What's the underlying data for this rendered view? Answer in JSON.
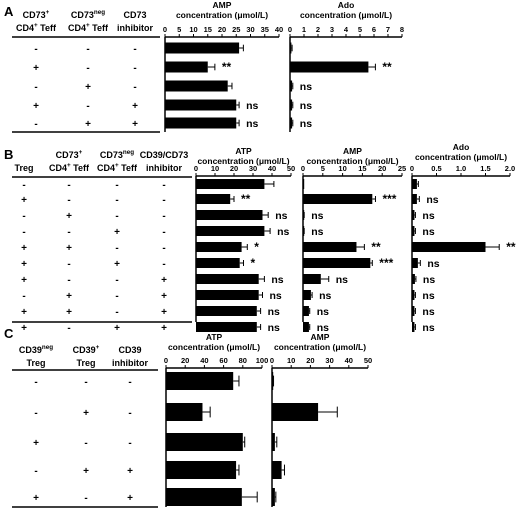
{
  "panels": [
    {
      "label": "A",
      "table": {
        "headers": [
          [
            "CD73+",
            "CD4+ Teff"
          ],
          [
            "CD73neg",
            "CD4+ Teff"
          ],
          [
            "CD73",
            "inhibitor"
          ]
        ],
        "rows": [
          [
            "-",
            "-",
            "-"
          ],
          [
            "+",
            "-",
            "-"
          ],
          [
            "-",
            "+",
            "-"
          ],
          [
            "+",
            "-",
            "+"
          ],
          [
            "-",
            "+",
            "+"
          ]
        ]
      },
      "charts": [
        {
          "title": [
            "AMP",
            "concentration (μmol/L)"
          ],
          "ticks": [
            "0",
            "5",
            "10",
            "15",
            "20",
            "25",
            "30",
            "35",
            "40"
          ]
        },
        {
          "title": [
            "Ado",
            "concentration (μmol/L)"
          ],
          "ticks": [
            "0",
            "1",
            "2",
            "3",
            "4",
            "5",
            "6",
            "7",
            "8"
          ]
        }
      ]
    },
    {
      "label": "B",
      "table": {
        "headers": [
          [
            "Treg"
          ],
          [
            "CD73+",
            "CD4+ Teff"
          ],
          [
            "CD73neg",
            "CD4+ Teff"
          ],
          [
            "CD39/CD73",
            "inhibitor"
          ]
        ],
        "rows": [
          [
            "-",
            "-",
            "-",
            "-"
          ],
          [
            "+",
            "-",
            "-",
            "-"
          ],
          [
            "-",
            "+",
            "-",
            "-"
          ],
          [
            "-",
            "-",
            "+",
            "-"
          ],
          [
            "+",
            "+",
            "-",
            "-"
          ],
          [
            "+",
            "-",
            "+",
            "-"
          ],
          [
            "+",
            "-",
            "-",
            "+"
          ],
          [
            "-",
            "+",
            "-",
            "+"
          ],
          [
            "+",
            "+",
            "-",
            "+"
          ],
          [
            "+",
            "-",
            "+",
            "+"
          ]
        ]
      },
      "charts": [
        {
          "title": [
            "ATP",
            "concentration (μmol/L)"
          ],
          "ticks": [
            "0",
            "10",
            "20",
            "30",
            "40",
            "50"
          ]
        },
        {
          "title": [
            "AMP",
            "concentration (μmol/L)"
          ],
          "ticks": [
            "0",
            "5",
            "10",
            "15",
            "20",
            "25"
          ]
        },
        {
          "title": [
            "Ado",
            "concentration (μmol/L)"
          ],
          "ticks": [
            "0",
            "0.5",
            "1.0",
            "1.5",
            "2.0"
          ]
        }
      ]
    },
    {
      "label": "C",
      "table": {
        "headers": [
          [
            "CD39neg",
            "Treg"
          ],
          [
            "CD39+",
            "Treg"
          ],
          [
            "CD39",
            "inhibitor"
          ]
        ],
        "rows": [
          [
            "-",
            "-",
            "-"
          ],
          [
            "-",
            "+",
            "-"
          ],
          [
            "+",
            "-",
            "-"
          ],
          [
            "-",
            "+",
            "+"
          ],
          [
            "+",
            "-",
            "+"
          ]
        ]
      },
      "charts": [
        {
          "title": [
            "ATP",
            "concentration (μmol/L)"
          ],
          "ticks": [
            "0",
            "20",
            "40",
            "60",
            "80",
            "100"
          ]
        },
        {
          "title": [
            "AMP",
            "concentration (μmol/L)"
          ],
          "ticks": [
            "0",
            "10",
            "20",
            "30",
            "40",
            "50"
          ]
        }
      ]
    }
  ],
  "chart_data": [
    {
      "type": "bar",
      "orientation": "horizontal",
      "panel": "A",
      "title": "AMP concentration (μmol/L)",
      "xlim": [
        0,
        40
      ],
      "values": [
        26,
        15,
        22,
        25,
        25
      ],
      "errors": [
        1.5,
        2.5,
        1.5,
        1,
        1
      ],
      "annotations": [
        "",
        "**",
        "",
        "ns",
        "ns"
      ]
    },
    {
      "type": "bar",
      "orientation": "horizontal",
      "panel": "A",
      "title": "Ado concentration (μmol/L)",
      "xlim": [
        0,
        8
      ],
      "values": [
        0.1,
        5.6,
        0.15,
        0.15,
        0.15
      ],
      "errors": [
        0.05,
        0.5,
        0.05,
        0.05,
        0.05
      ],
      "annotations": [
        "",
        "**",
        "ns",
        "ns",
        "ns"
      ]
    },
    {
      "type": "bar",
      "orientation": "horizontal",
      "panel": "B",
      "title": "ATP concentration (μmol/L)",
      "xlim": [
        0,
        50
      ],
      "values": [
        36,
        18,
        35,
        36,
        24,
        23,
        33,
        33,
        32,
        32
      ],
      "errors": [
        5,
        2,
        3,
        3,
        3,
        2,
        3,
        2,
        2,
        2
      ],
      "annotations": [
        "",
        "**",
        "ns",
        "ns",
        "*",
        "*",
        "ns",
        "ns",
        "ns",
        "ns"
      ]
    },
    {
      "type": "bar",
      "orientation": "horizontal",
      "panel": "B",
      "title": "AMP concentration (μmol/L)",
      "xlim": [
        0,
        25
      ],
      "values": [
        0,
        17.5,
        0.2,
        0.2,
        13.5,
        17,
        4.5,
        2,
        1.5,
        1.5
      ],
      "errors": [
        0,
        0.8,
        0.1,
        0.1,
        2,
        0.5,
        2,
        0.3,
        0.2,
        0.2
      ],
      "annotations": [
        "",
        "***",
        "ns",
        "ns",
        "**",
        "***",
        "ns",
        "ns",
        "ns",
        "ns"
      ]
    },
    {
      "type": "bar",
      "orientation": "horizontal",
      "panel": "B",
      "title": "Ado concentration (μmol/L)",
      "xlim": [
        0,
        2
      ],
      "values": [
        0.1,
        0.1,
        0.05,
        0.05,
        1.5,
        0.12,
        0.06,
        0.05,
        0.05,
        0.05
      ],
      "errors": [
        0.03,
        0.05,
        0.02,
        0.02,
        0.28,
        0.05,
        0.02,
        0.02,
        0.02,
        0.02
      ],
      "annotations": [
        "",
        "ns",
        "ns",
        "ns",
        "**",
        "ns",
        "ns",
        "ns",
        "ns",
        "ns"
      ]
    },
    {
      "type": "bar",
      "orientation": "horizontal",
      "panel": "C",
      "title": "ATP concentration (μmol/L)",
      "xlim": [
        0,
        100
      ],
      "values": [
        70,
        38,
        80,
        73,
        79
      ],
      "errors": [
        6,
        8,
        2,
        3,
        16
      ],
      "annotations": [
        "",
        "",
        "",
        "",
        ""
      ]
    },
    {
      "type": "bar",
      "orientation": "horizontal",
      "panel": "C",
      "title": "AMP concentration (μmol/L)",
      "xlim": [
        0,
        50
      ],
      "values": [
        0.5,
        24,
        1.5,
        5,
        1.5
      ],
      "errors": [
        0.3,
        10,
        1,
        1.5,
        0.5
      ],
      "annotations": [
        "",
        "",
        "",
        "",
        ""
      ]
    }
  ]
}
